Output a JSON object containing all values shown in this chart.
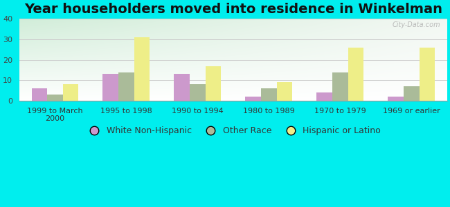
{
  "title": "Year householders moved into residence in Winkelman",
  "categories": [
    "1999 to March\n2000",
    "1995 to 1998",
    "1990 to 1994",
    "1980 to 1989",
    "1970 to 1979",
    "1969 or earlier"
  ],
  "series": {
    "White Non-Hispanic": [
      6,
      13,
      13,
      2,
      4,
      2
    ],
    "Other Race": [
      3,
      14,
      8,
      6,
      14,
      7
    ],
    "Hispanic or Latino": [
      8,
      31,
      17,
      9,
      26,
      26
    ]
  },
  "colors": {
    "White Non-Hispanic": "#cc99cc",
    "Other Race": "#aabb99",
    "Hispanic or Latino": "#eeee88"
  },
  "ylim": [
    0,
    40
  ],
  "yticks": [
    0,
    10,
    20,
    30,
    40
  ],
  "outer_bg": "#00eeee",
  "grid_color": "#cccccc",
  "title_fontsize": 14,
  "legend_fontsize": 9,
  "tick_fontsize": 8,
  "bar_width": 0.22,
  "watermark": "City-Data.com"
}
